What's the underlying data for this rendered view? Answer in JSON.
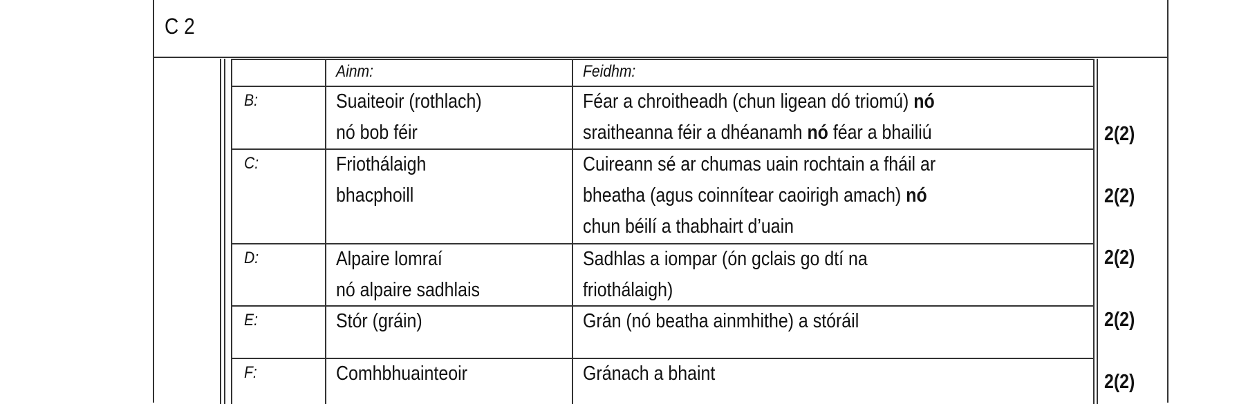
{
  "question": {
    "label": "C 2"
  },
  "table": {
    "headers": {
      "name": "Ainm:",
      "function": "Feidhm:"
    },
    "rows": [
      {
        "letter": "B:",
        "name": [
          "Suaiteoir (rothlach)",
          "nó bob féir"
        ],
        "function": [
          [
            "Féar a chroitheadh (chun ligean dó triomú) ",
            "nó",
            ""
          ],
          [
            "sraitheanna féir a dhéanamh ",
            "nó",
            " féar a bhailiú"
          ]
        ],
        "mark": "2(2)"
      },
      {
        "letter": "C:",
        "name": [
          "Friothálaigh",
          "bhacphoill"
        ],
        "function": [
          [
            "Cuireann sé ar chumas uain rochtain a fháil ar",
            "",
            ""
          ],
          [
            "bheatha (agus coinnítear caoirigh amach) ",
            "nó",
            ""
          ],
          [
            "chun béilí a thabhairt d’uain",
            "",
            ""
          ]
        ],
        "mark": "2(2)"
      },
      {
        "letter": "D:",
        "name": [
          "Alpaire lomraí",
          "nó alpaire sadhlais"
        ],
        "function": [
          [
            "Sadhlas a iompar (ón gclais go dtí na",
            "",
            ""
          ],
          [
            "friothálaigh)",
            "",
            ""
          ]
        ],
        "mark": "2(2)"
      },
      {
        "letter": "E:",
        "name": [
          "Stór (gráin)"
        ],
        "function": [
          [
            "Grán (nó beatha ainmhithe) a stóráil",
            "",
            ""
          ]
        ],
        "mark": "2(2)"
      },
      {
        "letter": "F:",
        "name": [
          "Comhbhuainteoir"
        ],
        "function": [
          [
            "Gránach a bhaint",
            "",
            ""
          ]
        ],
        "mark": "2(2)"
      }
    ]
  }
}
